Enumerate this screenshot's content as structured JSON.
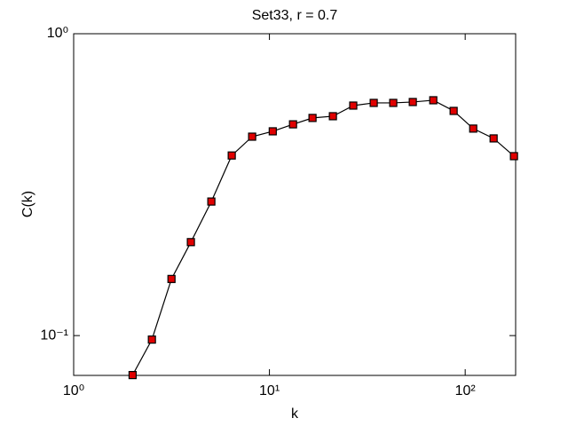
{
  "chart_data": {
    "type": "line",
    "title": "Set33, r = 0.7",
    "x_label": "k",
    "y_label": "C(k)",
    "x": [
      2,
      2.51,
      3.16,
      3.97,
      5.05,
      6.42,
      8.16,
      10.4,
      13.2,
      16.6,
      21.1,
      26.8,
      34.1,
      42.9,
      54.0,
      68.7,
      87.3,
      109.9,
      139.7,
      177.5
    ],
    "series": [
      {
        "name": "C(k)",
        "color": "#e00000",
        "line_color": "#000000",
        "values": [
          0.074,
          0.097,
          0.154,
          0.204,
          0.278,
          0.395,
          0.456,
          0.475,
          0.501,
          0.526,
          0.533,
          0.578,
          0.59,
          0.59,
          0.594,
          0.602,
          0.555,
          0.485,
          0.45,
          0.393
        ]
      }
    ],
    "xlim": [
      1,
      181
    ],
    "ylim": [
      0.0738,
      1
    ],
    "xscale": "log",
    "yscale": "log",
    "xticks": [
      {
        "value": 1,
        "label": "10⁰"
      },
      {
        "value": 10,
        "label": "10¹"
      },
      {
        "value": 100,
        "label": "10²"
      }
    ],
    "yticks": [
      {
        "value": 0.1,
        "label": "10⁻¹"
      },
      {
        "value": 1,
        "label": "10⁰"
      }
    ]
  }
}
